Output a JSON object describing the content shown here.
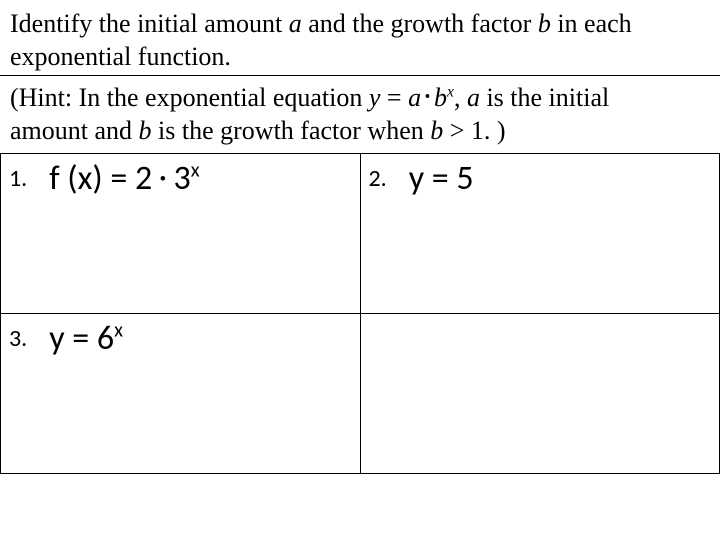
{
  "instruction": {
    "line1_pre": "Identify the initial amount ",
    "a": "a",
    "line1_mid": " and the growth factor ",
    "b": "b",
    "line1_post": " in each",
    "line2": "exponential function."
  },
  "hint": {
    "pre": "(Hint: In the exponential equation ",
    "eq_y": "y",
    "eq_eq": " = ",
    "eq_a": "a",
    "eq_dot": " • ",
    "eq_b": "b",
    "eq_x": "x",
    "mid": ", ",
    "a2": "a",
    "mid2": " is the initial",
    "line2_pre": "amount and ",
    "b2": "b",
    "line2_mid": " is the growth factor when ",
    "b3": "b",
    "gt": " > 1. )"
  },
  "cells": {
    "c1": {
      "num": "1.",
      "eq_pre": "f (x) = 2 ",
      "eq_dot": "•",
      "eq_post": " 3",
      "eq_sup": "x"
    },
    "c2": {
      "num": "2.",
      "eq": "y = 5"
    },
    "c3": {
      "num": "3.",
      "eq_pre": "y = 6",
      "eq_sup": "x"
    },
    "c4": {
      "num": "",
      "eq": ""
    }
  },
  "style": {
    "background_color": "#ffffff",
    "text_color": "#000000",
    "border_color": "#000000",
    "instruction_font": "Times New Roman",
    "equation_font": "Calibri",
    "instruction_fontsize": 26,
    "equation_fontsize": 34,
    "cell_number_fontsize": 24,
    "table_rows": 2,
    "table_cols": 2
  }
}
